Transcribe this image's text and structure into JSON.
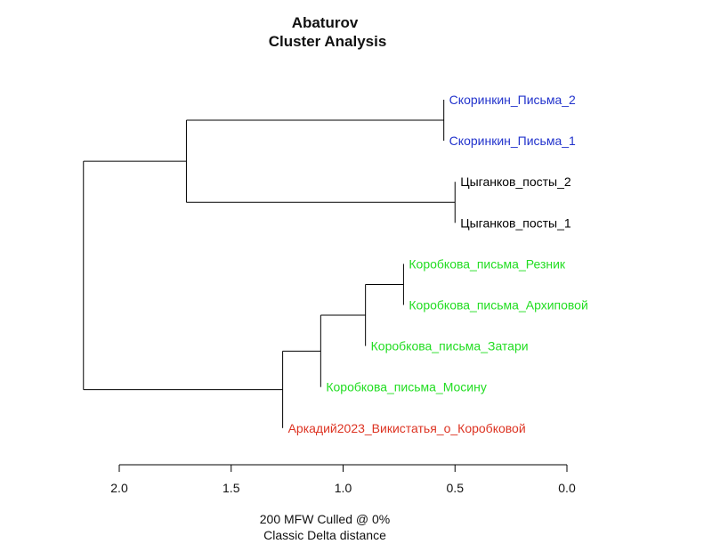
{
  "chart_data": {
    "type": "dendrogram",
    "title": [
      "Abaturov",
      "Cluster Analysis"
    ],
    "caption": [
      "200 MFW  Culled @ 0%",
      "Classic Delta distance"
    ],
    "axis": {
      "min": 0.0,
      "max": 2.0,
      "reversed": true,
      "ticks": [
        2.0,
        1.5,
        1.0,
        0.5,
        0.0
      ],
      "tick_labels": [
        "2.0",
        "1.5",
        "1.0",
        "0.5",
        "0.0"
      ]
    },
    "leaves": [
      {
        "label": "Скоринкин_Письма_2",
        "color": "#2233cc",
        "height": 0.55
      },
      {
        "label": "Скоринкин_Письма_1",
        "color": "#2233cc",
        "height": 0.55
      },
      {
        "label": "Цыганков_посты_2",
        "color": "#000000",
        "height": 0.5
      },
      {
        "label": "Цыганков_посты_1",
        "color": "#000000",
        "height": 0.5
      },
      {
        "label": "Коробкова_письма_Резник",
        "color": "#22dd22",
        "height": 0.73
      },
      {
        "label": "Коробкова_письма_Архиповой",
        "color": "#22dd22",
        "height": 0.73
      },
      {
        "label": "Коробкова_письма_Затари",
        "color": "#22dd22",
        "height": 0.9
      },
      {
        "label": "Коробкова_письма_Мосину",
        "color": "#22dd22",
        "height": 1.1
      },
      {
        "label": "Аркадий2023_Викистатья_о_Коробковой",
        "color": "#dd3322",
        "height": 1.27
      }
    ],
    "merges": [
      {
        "left": "L0",
        "right": "L1",
        "height": 0.55
      },
      {
        "left": "L2",
        "right": "L3",
        "height": 0.5
      },
      {
        "left": "M0",
        "right": "M1",
        "height": 1.7
      },
      {
        "left": "L4",
        "right": "L5",
        "height": 0.73
      },
      {
        "left": "M3",
        "right": "L6",
        "height": 0.9
      },
      {
        "left": "M4",
        "right": "L7",
        "height": 1.1
      },
      {
        "left": "M5",
        "right": "L8",
        "height": 1.27
      },
      {
        "left": "M2",
        "right": "M6",
        "height": 2.16
      }
    ]
  }
}
